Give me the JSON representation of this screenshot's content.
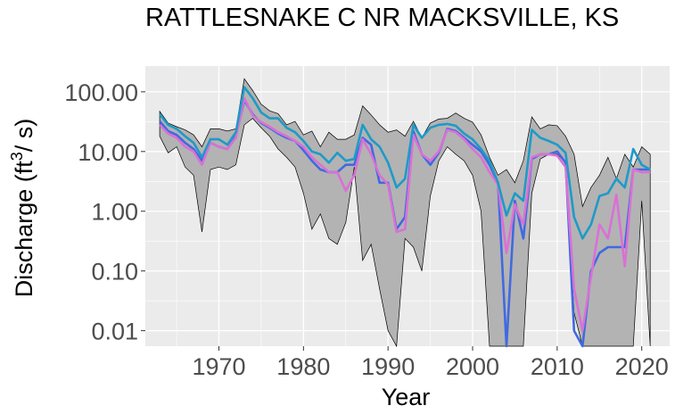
{
  "chart_data": {
    "type": "line",
    "title": "RATTLESNAKE C NR MACKSVILLE, KS",
    "xlabel": "Year",
    "ylabel": "Discharge (ft³/s)",
    "ylabel_parts": {
      "main": "Discharge (ft",
      "sup": "3",
      "tail": "/ s)"
    },
    "y_scale": "log10",
    "xlim": [
      1961.3,
      2023.3
    ],
    "ylim": [
      0.0055,
      270
    ],
    "x_ticks": [
      1970,
      1980,
      1990,
      2000,
      2010,
      2020
    ],
    "x_tick_labels": [
      "1970",
      "1980",
      "1990",
      "2000",
      "2010",
      "2020"
    ],
    "y_ticks": [
      0.01,
      0.1,
      1,
      10,
      100
    ],
    "y_tick_labels": [
      "0.01",
      "0.10",
      "1.00",
      "10.00",
      "100.00"
    ],
    "grid": true,
    "legend": "none",
    "colors": {
      "panel": "#ebebeb",
      "grid": "#ffffff",
      "band_fill": "#b3b3b3",
      "band_line": "#000000",
      "series_1": "#4169e1",
      "series_2": "#da70d6",
      "series_3": "#1e9ac8"
    },
    "x": [
      1963,
      1964,
      1965,
      1966,
      1967,
      1968,
      1969,
      1970,
      1971,
      1972,
      1973,
      1974,
      1975,
      1976,
      1977,
      1978,
      1979,
      1980,
      1981,
      1982,
      1983,
      1984,
      1985,
      1986,
      1987,
      1988,
      1989,
      1990,
      1991,
      1992,
      1993,
      1994,
      1995,
      1996,
      1997,
      1998,
      1999,
      2000,
      2001,
      2002,
      2003,
      2004,
      2005,
      2006,
      2007,
      2008,
      2009,
      2010,
      2011,
      2012,
      2013,
      2014,
      2015,
      2016,
      2017,
      2018,
      2019,
      2020,
      2021
    ],
    "band_upper": [
      47,
      30,
      26,
      23,
      19,
      12,
      24,
      24,
      22,
      24,
      165,
      105,
      62,
      48,
      43,
      28,
      32,
      19,
      22,
      12,
      21,
      16,
      16,
      19,
      58,
      41,
      28,
      21,
      23,
      18,
      32,
      17,
      30,
      35,
      36,
      44,
      36,
      31,
      19,
      8,
      4,
      5,
      3,
      7,
      38,
      24,
      28,
      27,
      18,
      9,
      1.2,
      2.5,
      4,
      8,
      3.5,
      9,
      5.5,
      12,
      9
    ],
    "band_lower": [
      18,
      9.5,
      12,
      5.5,
      4,
      0.45,
      5,
      5.5,
      5,
      6,
      28,
      36,
      25,
      18,
      11,
      8,
      5.5,
      2,
      0.5,
      0.9,
      0.35,
      0.28,
      0.65,
      5.5,
      0.15,
      0.28,
      0.05,
      0.01,
      0.005,
      0.35,
      0.25,
      0.1,
      1.8,
      7,
      12,
      9,
      7,
      4,
      1,
      0.0055,
      0.0055,
      0.0055,
      0.0055,
      0.0055,
      2,
      7.5,
      9,
      9,
      6.5,
      0.02,
      0.0055,
      0.0055,
      0.0055,
      0.0055,
      0.0055,
      0.0055,
      0.0055,
      1.5,
      0.0055
    ],
    "series": [
      {
        "values": [
          32,
          22,
          19,
          14,
          11,
          7,
          14,
          12,
          11,
          18,
          72,
          42,
          30,
          25,
          20,
          17,
          15,
          10.5,
          7,
          5,
          4.5,
          4.5,
          6,
          6,
          17,
          13,
          3,
          3,
          0.5,
          0.8,
          22,
          9,
          6,
          9.5,
          24,
          22,
          17,
          13,
          10,
          6,
          3,
          0.005,
          1.5,
          0.35,
          7.5,
          9,
          9,
          10,
          6.5,
          0.01,
          0.005,
          0.1,
          0.2,
          0.25,
          0.25,
          0.25,
          5,
          5,
          5
        ]
      },
      {
        "values": [
          28,
          20,
          17,
          12,
          10,
          6,
          14,
          12,
          11,
          17,
          78,
          40,
          31,
          26,
          21,
          18,
          15,
          12,
          8,
          6,
          4.5,
          4.5,
          2.2,
          4,
          16,
          9,
          4,
          2.8,
          0.45,
          0.5,
          19,
          9,
          7,
          10,
          23,
          21,
          16,
          11,
          8,
          4.5,
          2.8,
          0.2,
          1.3,
          0.6,
          8,
          9,
          9,
          8.5,
          5.5,
          0.05,
          0.01,
          0.08,
          0.6,
          0.35,
          1.9,
          0.12,
          5,
          4.5,
          4.5
        ]
      },
      {
        "values": [
          42,
          28,
          24,
          18,
          14,
          8,
          16,
          16,
          13,
          21,
          120,
          78,
          45,
          36,
          36,
          25,
          21,
          15,
          10,
          9,
          6.5,
          9.5,
          7,
          7.5,
          28,
          16,
          12,
          6.5,
          2.5,
          3.5,
          28,
          17,
          25,
          28,
          29,
          27,
          20,
          16,
          11,
          7,
          3,
          0.85,
          2,
          1.5,
          23,
          17,
          15,
          13,
          9.5,
          0.8,
          0.35,
          0.6,
          1.8,
          2,
          3.5,
          2.5,
          11,
          6,
          5
        ]
      }
    ]
  }
}
